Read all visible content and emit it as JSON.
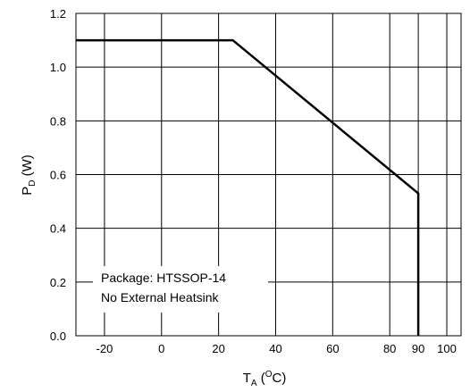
{
  "chart_data": {
    "type": "line",
    "title": "",
    "xlabel": {
      "main": "T",
      "sub": "A",
      "unit_open": " (",
      "unit_sup": "O",
      "unit_close": "C)"
    },
    "ylabel": {
      "main": "P",
      "sub": "D",
      "unit": " (W)"
    },
    "xlim": [
      -30,
      105
    ],
    "ylim": [
      0.0,
      1.2
    ],
    "x_ticks": [
      -20,
      0,
      20,
      40,
      60,
      80,
      90,
      100
    ],
    "x_tick_labels": [
      "-20",
      "0",
      "20",
      "40",
      "60",
      "80",
      "90",
      "100"
    ],
    "y_ticks": [
      0.0,
      0.2,
      0.4,
      0.6,
      0.8,
      1.0,
      1.2
    ],
    "y_tick_labels": [
      "0.0",
      "0.2",
      "0.4",
      "0.6",
      "0.8",
      "1.0",
      "1.2"
    ],
    "x_gridlines": [
      -20,
      0,
      20,
      40,
      60,
      80,
      90,
      100
    ],
    "y_gridlines": [
      0.2,
      0.4,
      0.6,
      0.8,
      1.0
    ],
    "grid": true,
    "series": [
      {
        "x": [
          -30,
          25,
          90,
          90
        ],
        "y": [
          1.1,
          1.1,
          0.53,
          0.0
        ]
      }
    ],
    "annotations": [
      "Package: HTSSOP-14",
      "No External Heatsink"
    ],
    "colors": {
      "line": "#000000",
      "grid": "#000000",
      "background": "#ffffff"
    }
  }
}
